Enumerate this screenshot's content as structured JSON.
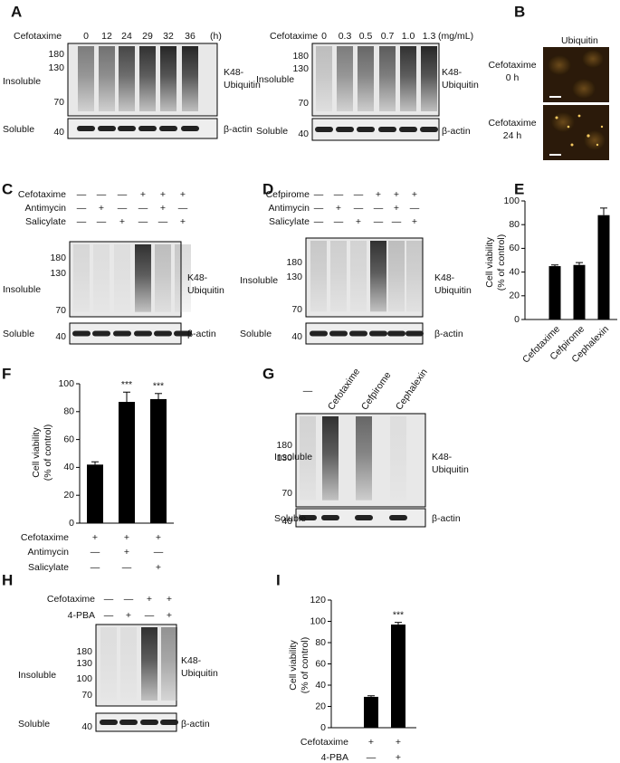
{
  "panels": {
    "A": {
      "label": "A",
      "left": {
        "treatment": "Cefotaxime",
        "lanes": [
          "0",
          "12",
          "24",
          "29",
          "32",
          "36"
        ],
        "unit": "(h)",
        "insoluble_label": "Insoluble",
        "markers": [
          180,
          130,
          70
        ],
        "protein": [
          "K48-",
          "Ubiquitin"
        ],
        "soluble_label": "Soluble",
        "soluble_marker": 40,
        "loading": "β-actin"
      },
      "right": {
        "treatment": "Cefotaxime",
        "lanes": [
          "0",
          "0.3",
          "0.5",
          "0.7",
          "1.0",
          "1.3"
        ],
        "unit": "(mg/mL)",
        "insoluble_label": "Insoluble",
        "markers": [
          180,
          130,
          70
        ],
        "protein": [
          "K48-",
          "Ubiquitin"
        ],
        "soluble_label": "Soluble",
        "soluble_marker": 40,
        "loading": "β-actin"
      }
    },
    "B": {
      "label": "B",
      "stain": "Ubiquitin",
      "images": [
        {
          "lines": [
            "Cefotaxime",
            "0 h"
          ]
        },
        {
          "lines": [
            "Cefotaxime",
            "24 h"
          ]
        }
      ]
    },
    "C": {
      "label": "C",
      "blot": {
        "conditions": [
          {
            "name": "Cefotaxime",
            "marks": [
              "—",
              "—",
              "—",
              "+",
              "+",
              "+"
            ]
          },
          {
            "name": "Antimycin",
            "marks": [
              "—",
              "+",
              "—",
              "—",
              "+",
              "—"
            ]
          },
          {
            "name": "Salicylate",
            "marks": [
              "—",
              "—",
              "+",
              "—",
              "—",
              "+"
            ]
          }
        ],
        "insoluble_label": "Insoluble",
        "markers": [
          180,
          130,
          70
        ],
        "protein": [
          "K48-",
          "Ubiquitin"
        ],
        "soluble_label": "Soluble",
        "soluble_marker": 40,
        "loading": "β-actin"
      }
    },
    "D": {
      "label": "D",
      "blot": {
        "conditions": [
          {
            "name": "Cefpirome",
            "marks": [
              "—",
              "—",
              "—",
              "+",
              "+",
              "+"
            ]
          },
          {
            "name": "Antimycin",
            "marks": [
              "—",
              "+",
              "—",
              "—",
              "+",
              "—"
            ]
          },
          {
            "name": "Salicylate",
            "marks": [
              "—",
              "—",
              "+",
              "—",
              "—",
              "+"
            ]
          }
        ],
        "insoluble_label": "Insoluble",
        "markers": [
          180,
          130,
          70
        ],
        "protein": [
          "K48-",
          "Ubiquitin"
        ],
        "soluble_label": "Soluble",
        "soluble_marker": 40,
        "loading": "β-actin"
      }
    },
    "G": {
      "label": "G",
      "blot": {
        "lanes": [
          "—",
          "Cefotaxime",
          "Cefpirome",
          "Cephalexin"
        ],
        "insoluble_label": "Insoluble",
        "markers": [
          180,
          130,
          70
        ],
        "protein": [
          "K48-",
          "Ubiquitin"
        ],
        "soluble_label": "Soluble",
        "soluble_marker": 40,
        "loading": "β-actin"
      }
    },
    "H": {
      "label": "H",
      "blot": {
        "conditions": [
          {
            "name": "Cefotaxime",
            "marks": [
              "—",
              "—",
              "+",
              "+"
            ]
          },
          {
            "name": "4-PBA",
            "marks": [
              "—",
              "+",
              "—",
              "+"
            ]
          }
        ],
        "insoluble_label": "Insoluble",
        "markers": [
          180,
          130,
          100,
          70
        ],
        "protein": [
          "K48-",
          "Ubiquitin"
        ],
        "soluble_label": "Soluble",
        "soluble_marker": 40,
        "loading": "β-actin"
      }
    }
  },
  "chart_data": [
    {
      "type": "bar",
      "panel": "E",
      "y_label": [
        "Cell viability",
        "(% of control)"
      ],
      "categories": [
        "Cefotaxime",
        "Cefpirome",
        "Cephalexin"
      ],
      "values": [
        45,
        46,
        88
      ],
      "errors": [
        1,
        2,
        6
      ],
      "color": "#000000",
      "ylim": [
        0,
        100
      ],
      "yticks": [
        0,
        20,
        40,
        60,
        80,
        100
      ]
    },
    {
      "type": "bar",
      "panel": "F",
      "y_label": [
        "Cell viability",
        "(% of control)"
      ],
      "conditions": [
        {
          "name": "Cefotaxime",
          "marks": [
            "+",
            "+",
            "+"
          ]
        },
        {
          "name": "Antimycin",
          "marks": [
            "—",
            "+",
            "—"
          ]
        },
        {
          "name": "Salicylate",
          "marks": [
            "—",
            "—",
            "+"
          ]
        }
      ],
      "values": [
        42,
        87,
        89
      ],
      "errors": [
        2,
        7,
        4
      ],
      "significance": [
        null,
        "***",
        "***"
      ],
      "color": "#000000",
      "ylim": [
        0,
        100
      ],
      "yticks": [
        0,
        20,
        40,
        60,
        80,
        100
      ]
    },
    {
      "type": "bar",
      "panel": "I",
      "y_label": [
        "Cell viability",
        "(% of control)"
      ],
      "conditions": [
        {
          "name": "Cefotaxime",
          "marks": [
            "+",
            "+"
          ]
        },
        {
          "name": "4-PBA",
          "marks": [
            "—",
            "+"
          ]
        }
      ],
      "values": [
        29,
        97
      ],
      "errors": [
        1,
        2
      ],
      "significance": [
        null,
        "***"
      ],
      "color": "#000000",
      "ylim": [
        0,
        120
      ],
      "yticks": [
        0,
        20,
        40,
        60,
        80,
        100,
        120
      ]
    }
  ]
}
